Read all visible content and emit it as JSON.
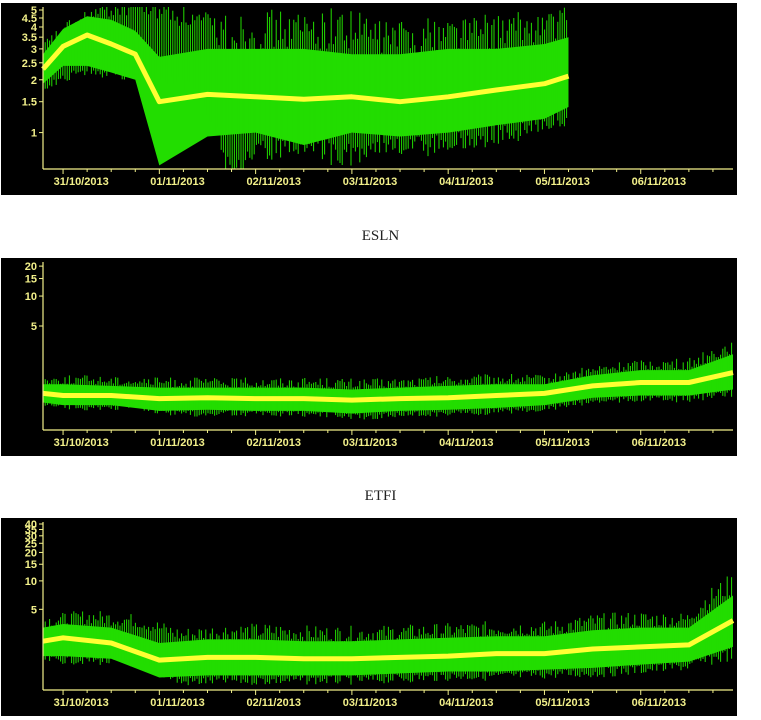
{
  "chart_data": [
    {
      "type": "line",
      "title": "",
      "yscale": "log",
      "ylim": [
        0.62,
        5.2
      ],
      "y_ticks": [
        1,
        1.5,
        2,
        2.5,
        3,
        3.5,
        4,
        4.5,
        5
      ],
      "y_tick_labels": [
        "1",
        "1.5",
        "2",
        "2.5",
        "3",
        "3.5",
        "4",
        "4.5",
        "5"
      ],
      "xlim": [
        "2013-10-30T19:00",
        "2013-11-06T23:00"
      ],
      "x_tick_labels": [
        "31/10/2013",
        "01/11/2013",
        "02/11/2013",
        "03/11/2013",
        "04/11/2013",
        "05/11/2013",
        "06/11/2013"
      ],
      "colors": {
        "envelope": "#22dd00",
        "median": "#ffff33",
        "axis": "#f2f08a",
        "background": "#000000"
      },
      "series": [
        {
          "role": "envelope",
          "x": [
            "2013-10-30T19:00",
            "2013-10-31T00:00",
            "2013-10-31T06:00",
            "2013-10-31T12:00",
            "2013-10-31T18:00",
            "2013-11-01T00:00",
            "2013-11-01T12:00",
            "2013-11-02T00:00",
            "2013-11-02T12:00",
            "2013-11-03T00:00",
            "2013-11-03T12:00",
            "2013-11-04T00:00",
            "2013-11-04T12:00",
            "2013-11-05T00:00",
            "2013-11-05T06:00"
          ],
          "y_low": [
            1.9,
            2.4,
            2.4,
            2.2,
            2.0,
            0.65,
            0.95,
            1.0,
            0.85,
            1.0,
            0.95,
            1.0,
            1.1,
            1.2,
            1.4
          ],
          "y_high": [
            2.8,
            3.9,
            4.6,
            4.4,
            3.8,
            2.7,
            3.0,
            3.0,
            3.0,
            2.8,
            2.8,
            3.0,
            3.0,
            3.2,
            3.5
          ]
        },
        {
          "role": "median",
          "x": [
            "2013-10-30T19:00",
            "2013-10-31T00:00",
            "2013-10-31T06:00",
            "2013-10-31T12:00",
            "2013-10-31T18:00",
            "2013-11-01T00:00",
            "2013-11-01T12:00",
            "2013-11-02T00:00",
            "2013-11-02T12:00",
            "2013-11-03T00:00",
            "2013-11-03T12:00",
            "2013-11-04T00:00",
            "2013-11-04T12:00",
            "2013-11-05T00:00",
            "2013-11-05T06:00"
          ],
          "y": [
            2.3,
            3.1,
            3.6,
            3.2,
            2.8,
            1.5,
            1.65,
            1.6,
            1.55,
            1.6,
            1.5,
            1.6,
            1.75,
            1.9,
            2.1
          ]
        }
      ]
    },
    {
      "type": "line",
      "title": "ESLN",
      "yscale": "log",
      "ylim": [
        0.45,
        22
      ],
      "y_ticks": [
        5,
        10,
        15,
        20
      ],
      "y_tick_labels": [
        "5",
        "10",
        "15",
        "20"
      ],
      "xlim": [
        "2013-10-30T19:00",
        "2013-11-06T23:00"
      ],
      "x_tick_labels": [
        "31/10/2013",
        "01/11/2013",
        "02/11/2013",
        "03/11/2013",
        "04/11/2013",
        "05/11/2013",
        "06/11/2013"
      ],
      "colors": {
        "envelope": "#22dd00",
        "median": "#ffff33",
        "axis": "#f2f08a",
        "background": "#000000"
      },
      "series": [
        {
          "role": "envelope",
          "x": [
            "2013-10-30T19:00",
            "2013-10-31T00:00",
            "2013-10-31T12:00",
            "2013-11-01T00:00",
            "2013-11-01T12:00",
            "2013-11-02T00:00",
            "2013-11-02T12:00",
            "2013-11-03T00:00",
            "2013-11-03T12:00",
            "2013-11-04T00:00",
            "2013-11-04T12:00",
            "2013-11-05T00:00",
            "2013-11-05T12:00",
            "2013-11-06T00:00",
            "2013-11-06T12:00",
            "2013-11-06T23:00"
          ],
          "y_low": [
            0.85,
            0.8,
            0.8,
            0.7,
            0.72,
            0.7,
            0.7,
            0.66,
            0.7,
            0.72,
            0.75,
            0.8,
            0.95,
            1.0,
            1.0,
            1.15
          ],
          "y_high": [
            1.3,
            1.3,
            1.25,
            1.2,
            1.2,
            1.2,
            1.2,
            1.15,
            1.2,
            1.25,
            1.3,
            1.3,
            1.6,
            1.8,
            1.8,
            2.6
          ]
        },
        {
          "role": "median",
          "x": [
            "2013-10-30T19:00",
            "2013-10-31T00:00",
            "2013-10-31T12:00",
            "2013-11-01T00:00",
            "2013-11-01T12:00",
            "2013-11-02T00:00",
            "2013-11-02T12:00",
            "2013-11-03T00:00",
            "2013-11-03T12:00",
            "2013-11-04T00:00",
            "2013-11-04T12:00",
            "2013-11-05T00:00",
            "2013-11-05T12:00",
            "2013-11-06T00:00",
            "2013-11-06T12:00",
            "2013-11-06T23:00"
          ],
          "y": [
            1.05,
            1.0,
            1.0,
            0.93,
            0.95,
            0.93,
            0.93,
            0.9,
            0.93,
            0.95,
            1.0,
            1.05,
            1.25,
            1.35,
            1.35,
            1.7
          ]
        }
      ]
    },
    {
      "type": "line",
      "title": "ETFI",
      "yscale": "log",
      "ylim": [
        0.7,
        42
      ],
      "y_ticks": [
        5,
        10,
        15,
        20,
        25,
        30,
        35,
        40
      ],
      "y_tick_labels": [
        "5",
        "10",
        "15",
        "20",
        "25",
        "30",
        "35",
        "40"
      ],
      "xlim": [
        "2013-10-30T19:00",
        "2013-11-06T23:00"
      ],
      "x_tick_labels": [
        "31/10/2013",
        "01/11/2013",
        "02/11/2013",
        "03/11/2013",
        "04/11/2013",
        "05/11/2013",
        "06/11/2013"
      ],
      "colors": {
        "envelope": "#22dd00",
        "median": "#ffff33",
        "axis": "#f2f08a",
        "background": "#000000"
      },
      "series": [
        {
          "role": "envelope",
          "x": [
            "2013-10-30T19:00",
            "2013-10-31T00:00",
            "2013-10-31T12:00",
            "2013-11-01T00:00",
            "2013-11-01T12:00",
            "2013-11-02T00:00",
            "2013-11-02T12:00",
            "2013-11-03T00:00",
            "2013-11-03T12:00",
            "2013-11-04T00:00",
            "2013-11-04T12:00",
            "2013-11-05T00:00",
            "2013-11-05T12:00",
            "2013-11-06T00:00",
            "2013-11-06T12:00",
            "2013-11-06T23:00"
          ],
          "y_low": [
            1.6,
            1.6,
            1.5,
            0.95,
            1.0,
            1.0,
            1.0,
            1.0,
            1.05,
            1.1,
            1.1,
            1.15,
            1.2,
            1.3,
            1.4,
            2.0
          ],
          "y_high": [
            3.2,
            3.5,
            3.2,
            2.2,
            2.4,
            2.4,
            2.3,
            2.3,
            2.4,
            2.5,
            2.6,
            2.6,
            3.0,
            3.2,
            3.2,
            7.0
          ]
        },
        {
          "role": "median",
          "x": [
            "2013-10-30T19:00",
            "2013-10-31T00:00",
            "2013-10-31T12:00",
            "2013-11-01T00:00",
            "2013-11-01T12:00",
            "2013-11-02T00:00",
            "2013-11-02T12:00",
            "2013-11-03T00:00",
            "2013-11-03T12:00",
            "2013-11-04T00:00",
            "2013-11-04T12:00",
            "2013-11-05T00:00",
            "2013-11-05T12:00",
            "2013-11-06T00:00",
            "2013-11-06T12:00",
            "2013-11-06T23:00"
          ],
          "y": [
            2.3,
            2.5,
            2.2,
            1.45,
            1.55,
            1.55,
            1.5,
            1.5,
            1.55,
            1.6,
            1.7,
            1.7,
            1.9,
            2.0,
            2.1,
            3.8
          ]
        }
      ]
    }
  ]
}
